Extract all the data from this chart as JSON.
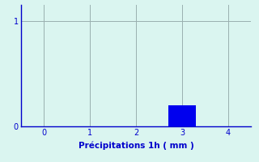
{
  "bar_x": [
    3
  ],
  "bar_height": [
    0.2
  ],
  "bar_color": "#0000ee",
  "bar_width": 0.6,
  "xlim": [
    -0.5,
    4.5
  ],
  "ylim": [
    0,
    1.15
  ],
  "yticks": [
    0,
    1
  ],
  "xticks": [
    0,
    1,
    2,
    3,
    4
  ],
  "xlabel": "Précipitations 1h ( mm )",
  "xlabel_color": "#0000cc",
  "xlabel_fontsize": 7.5,
  "tick_color": "#0000cc",
  "tick_fontsize": 7,
  "background_color": "#daf5f0",
  "grid_color": "#9ab0b0",
  "grid_linewidth": 0.7,
  "spine_color": "#0000cc",
  "spine_linewidth": 1.0
}
